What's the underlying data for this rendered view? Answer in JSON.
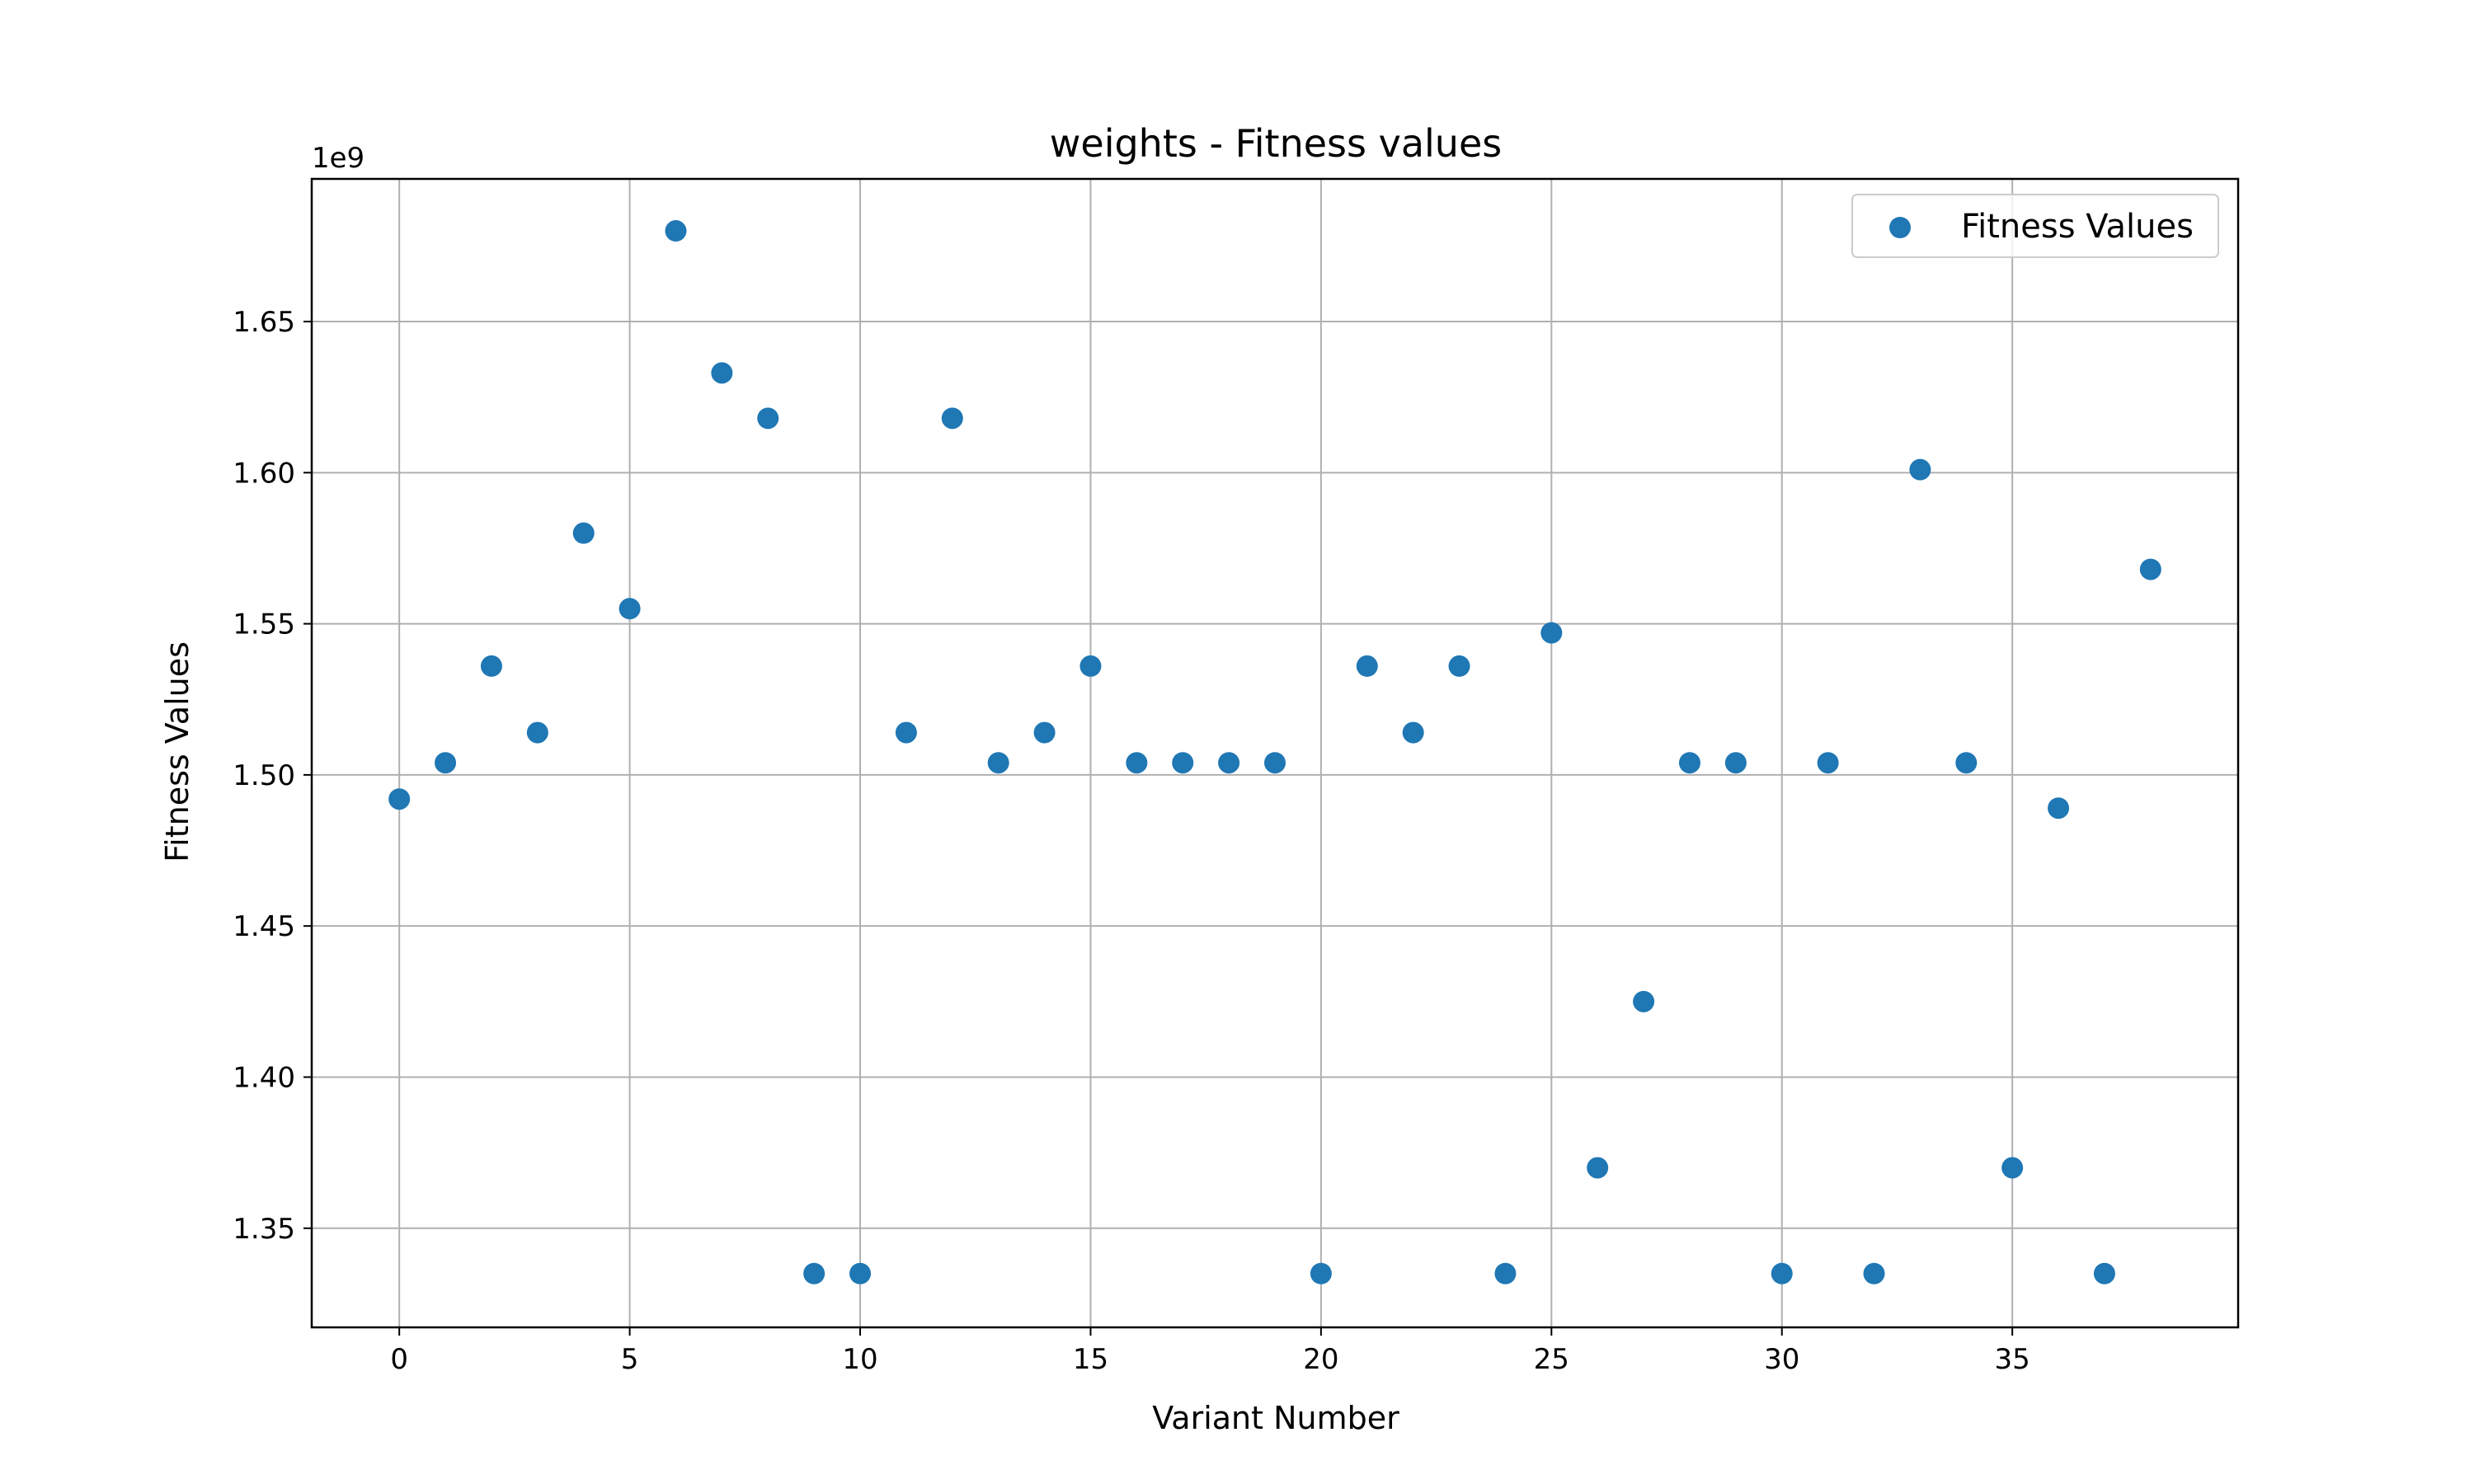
{
  "chart_data": {
    "type": "scatter",
    "title": "weights - Fitness values",
    "xlabel": "Variant Number",
    "ylabel": "Fitness Values",
    "y_offset_label": "1e9",
    "xlim": [
      -1.9,
      39.9
    ],
    "ylim": [
      1.3172,
      1.6972
    ],
    "grid": true,
    "legend_position": "top-right",
    "x_ticks": [
      0,
      5,
      10,
      15,
      20,
      25,
      30,
      35
    ],
    "x_tick_labels": [
      "0",
      "5",
      "10",
      "15",
      "20",
      "25",
      "30",
      "35"
    ],
    "y_ticks": [
      1.35,
      1.4,
      1.45,
      1.5,
      1.55,
      1.6,
      1.65
    ],
    "y_tick_labels": [
      "1.35",
      "1.40",
      "1.45",
      "1.50",
      "1.55",
      "1.60",
      "1.65"
    ],
    "series": [
      {
        "name": "Fitness Values",
        "color": "#1f77b4",
        "x": [
          0,
          1,
          2,
          3,
          4,
          5,
          6,
          7,
          8,
          9,
          10,
          11,
          12,
          13,
          14,
          15,
          16,
          17,
          18,
          19,
          20,
          21,
          22,
          23,
          24,
          25,
          26,
          27,
          28,
          29,
          30,
          31,
          32,
          33,
          34,
          35,
          36,
          37,
          38
        ],
        "y": [
          1.492,
          1.504,
          1.536,
          1.514,
          1.58,
          1.555,
          1.68,
          1.633,
          1.618,
          1.335,
          1.335,
          1.514,
          1.618,
          1.504,
          1.514,
          1.536,
          1.504,
          1.504,
          1.504,
          1.504,
          1.335,
          1.536,
          1.514,
          1.536,
          1.335,
          1.547,
          1.37,
          1.425,
          1.504,
          1.504,
          1.335,
          1.504,
          1.335,
          1.601,
          1.504,
          1.37,
          1.489,
          1.335,
          1.568
        ]
      }
    ]
  }
}
